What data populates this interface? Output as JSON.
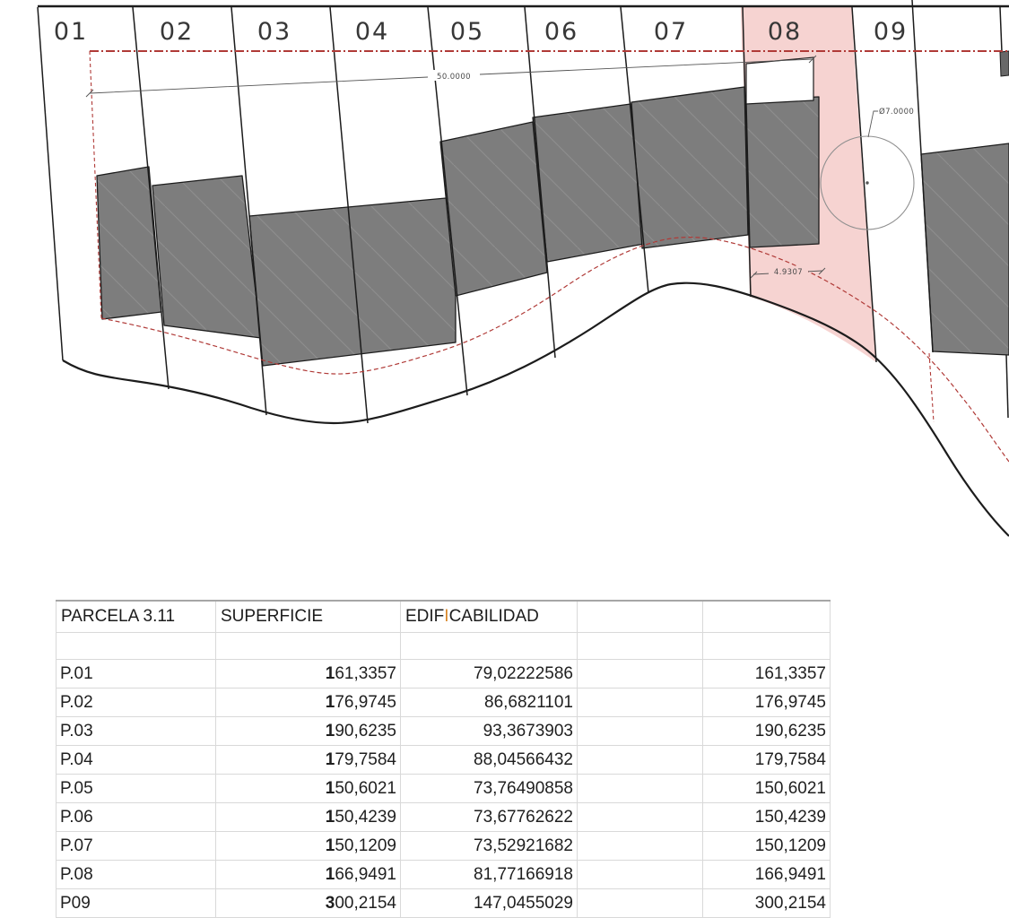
{
  "drawing": {
    "parcels": [
      "01",
      "02",
      "03",
      "04",
      "05",
      "06",
      "07",
      "08",
      "09"
    ],
    "highlighted_parcel": "08",
    "dimensions": {
      "width_label": "50.0000",
      "diameter_label": "Ø7.0000",
      "offset_label": "4.9307"
    },
    "colors": {
      "highlight_pink": "#f6d3d1",
      "building_gray": "#7d7d7d",
      "boundary_red": "#b03a37",
      "line_black": "#1c1c1c",
      "dim_gray": "#555555"
    }
  },
  "table": {
    "headers": {
      "col1": "PARCELA 3.11",
      "col2": "SUPERFICIE",
      "col3_prefix": "EDIF",
      "col3_highlight": "I",
      "col3_suffix": "CABILIDAD",
      "col4": "",
      "col5": ""
    },
    "highlight_color": "#d9882a",
    "rows": [
      {
        "id": "P.01",
        "superficie": "161,3357",
        "edificabilidad": "79,02222586",
        "col4": "",
        "col5": "161,3357"
      },
      {
        "id": "P.02",
        "superficie": "176,9745",
        "edificabilidad": "86,6821101",
        "col4": "",
        "col5": "176,9745"
      },
      {
        "id": "P.03",
        "superficie": "190,6235",
        "edificabilidad": "93,3673903",
        "col4": "",
        "col5": "190,6235"
      },
      {
        "id": "P.04",
        "superficie": "179,7584",
        "edificabilidad": "88,04566432",
        "col4": "",
        "col5": "179,7584"
      },
      {
        "id": "P.05",
        "superficie": "150,6021",
        "edificabilidad": "73,76490858",
        "col4": "",
        "col5": "150,6021"
      },
      {
        "id": "P.06",
        "superficie": "150,4239",
        "edificabilidad": "73,67762622",
        "col4": "",
        "col5": "150,4239"
      },
      {
        "id": "P.07",
        "superficie": "150,1209",
        "edificabilidad": "73,52921682",
        "col4": "",
        "col5": "150,1209"
      },
      {
        "id": "P.08",
        "superficie": "166,9491",
        "edificabilidad": "81,77166918",
        "col4": "",
        "col5": "166,9491"
      },
      {
        "id": "P09",
        "superficie": "300,2154",
        "edificabilidad": "147,0455029",
        "col4": "",
        "col5": "300,2154"
      }
    ]
  }
}
